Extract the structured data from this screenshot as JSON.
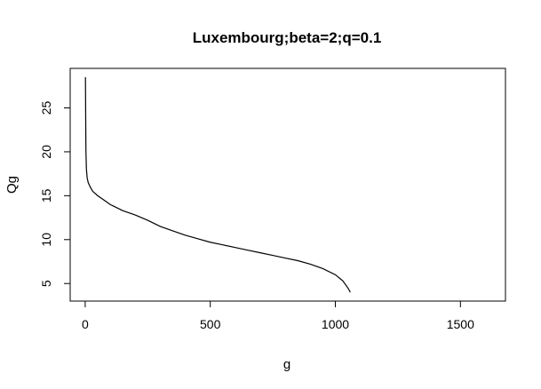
{
  "chart_data": {
    "type": "line",
    "title": "Luxembourg;beta=2;q=0.1",
    "xlabel": "g",
    "ylabel": "Qg",
    "xlim": [
      -60,
      1680
    ],
    "ylim": [
      3,
      29.5
    ],
    "xticks": [
      0,
      500,
      1000,
      1500
    ],
    "yticks": [
      5,
      10,
      15,
      20,
      25
    ],
    "grid": false,
    "legend": "none",
    "series": [
      {
        "color": "#000000",
        "x": [
          1,
          2,
          3,
          5,
          8,
          12,
          20,
          30,
          50,
          75,
          100,
          150,
          200,
          250,
          300,
          350,
          400,
          450,
          500,
          550,
          600,
          650,
          700,
          750,
          800,
          850,
          900,
          950,
          1000,
          1030,
          1050,
          1060
        ],
        "y": [
          28.5,
          24,
          20,
          18,
          17,
          16.5,
          16,
          15.5,
          15,
          14.5,
          14,
          13.3,
          12.8,
          12.2,
          11.5,
          11.0,
          10.5,
          10.1,
          9.7,
          9.4,
          9.1,
          8.8,
          8.5,
          8.2,
          7.9,
          7.6,
          7.2,
          6.7,
          6.0,
          5.3,
          4.5,
          4.0
        ]
      }
    ]
  }
}
